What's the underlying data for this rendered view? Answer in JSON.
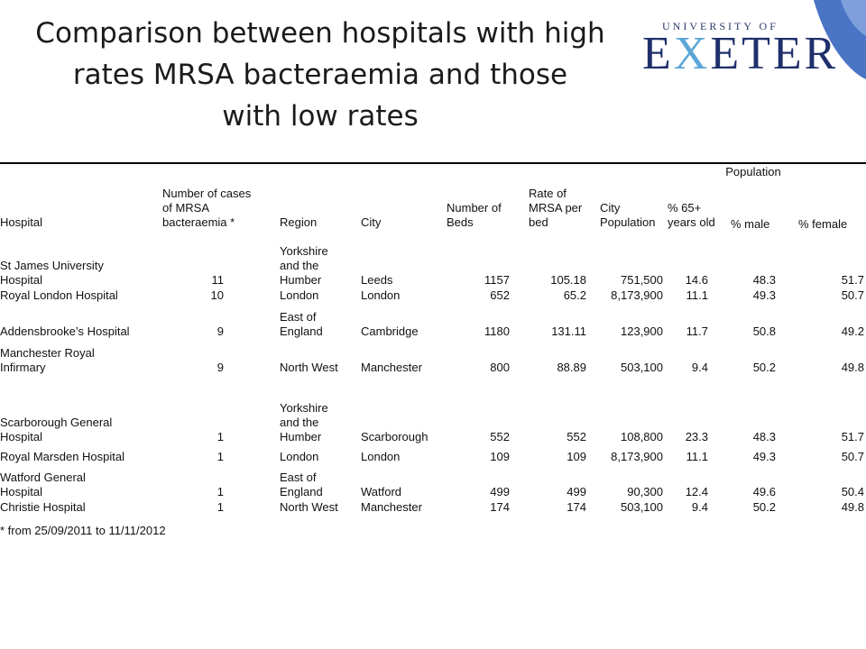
{
  "title": [
    "Comparison between hospitals with high",
    "rates MRSA bacteraemia and those",
    "with low rates"
  ],
  "logo": {
    "top": "UNIVERSITY OF",
    "main_a": "E",
    "main_x": "X",
    "main_b": "ETER"
  },
  "accent_color": "#4a74c4",
  "headers": {
    "hospital": "Hospital",
    "cases": "Number of cases\nof MRSA\nbacteraemia *",
    "region": "Region",
    "city": "City",
    "beds": "Number of\nBeds",
    "rate": "Rate of\nMRSA per\nbed",
    "pop_city": "City\nPopulation",
    "over65": "% 65+\nyears old",
    "population": "Population",
    "male": "% male",
    "female": "% female"
  },
  "rows": [
    {
      "hospital": "St James University\nHospital",
      "cases": "11",
      "region": "Yorkshire\nand the\nHumber",
      "city": "Leeds",
      "beds": "1157",
      "rate": "105.18",
      "pop_city": "751,500",
      "over65": "14.6",
      "male": "48.3",
      "female": "51.7"
    },
    {
      "hospital": "Royal London Hospital",
      "cases": "10",
      "region": "London",
      "city": "London",
      "beds": "652",
      "rate": "65.2",
      "pop_city": "8,173,900",
      "over65": "11.1",
      "male": "49.3",
      "female": "50.7"
    },
    {
      "hospital": "Addensbrooke’s Hospital",
      "cases": "9",
      "region": "East of\nEngland",
      "city": "Cambridge",
      "beds": "1180",
      "rate": "131.11",
      "pop_city": "123,900",
      "over65": "11.7",
      "male": "50.8",
      "female": "49.2"
    },
    {
      "hospital": "Manchester Royal\nInfirmary",
      "cases": "9",
      "region": "North West",
      "city": "Manchester",
      "beds": "800",
      "rate": "88.89",
      "pop_city": "503,100",
      "over65": "9.4",
      "male": "50.2",
      "female": "49.8"
    },
    {
      "hospital": "Scarborough General\nHospital",
      "cases": "1",
      "region": "Yorkshire\nand the\nHumber",
      "city": "Scarborough",
      "beds": "552",
      "rate": "552",
      "pop_city": "108,800",
      "over65": "23.3",
      "male": "48.3",
      "female": "51.7"
    },
    {
      "hospital": "Royal Marsden Hospital",
      "cases": "1",
      "region": "London",
      "city": "London",
      "beds": "109",
      "rate": "109",
      "pop_city": "8,173,900",
      "over65": "11.1",
      "male": "49.3",
      "female": "50.7"
    },
    {
      "hospital": "Watford General\nHospital",
      "cases": "1",
      "region": "East of\nEngland",
      "city": "Watford",
      "beds": "499",
      "rate": "499",
      "pop_city": "90,300",
      "over65": "12.4",
      "male": "49.6",
      "female": "50.4"
    },
    {
      "hospital": "Christie Hospital",
      "cases": "1",
      "region": "North West",
      "city": "Manchester",
      "beds": "174",
      "rate": "174",
      "pop_city": "503,100",
      "over65": "9.4",
      "male": "50.2",
      "female": "49.8"
    }
  ],
  "footnote": "* from 25/09/2011 to 11/11/2012"
}
